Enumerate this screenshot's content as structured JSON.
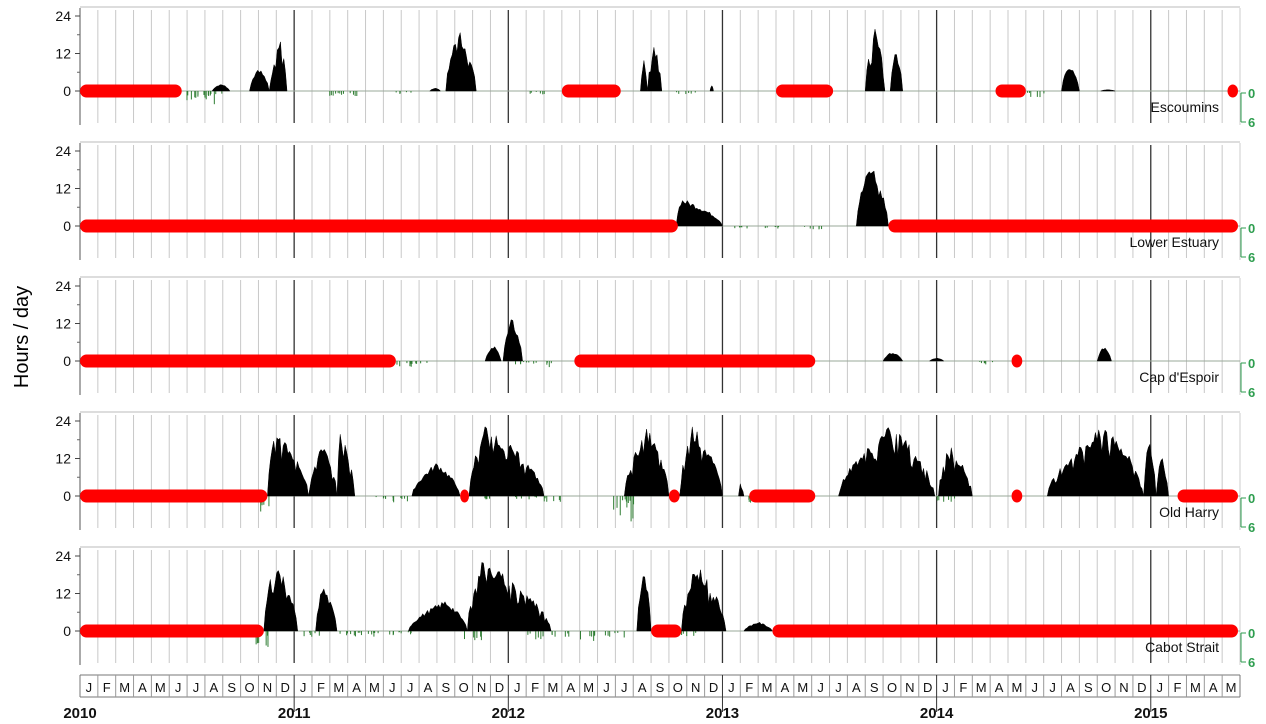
{
  "colors": {
    "presence_bars": "#000000",
    "negative_bars": "#2e7d32",
    "no_data": "#ff0000",
    "grid": "#c8c8c8",
    "year_line": "#333333",
    "right_axis": "#2e9e4f"
  },
  "chart_data": {
    "type": "bar",
    "ylabel": "Hours / day",
    "ylim": [
      -6,
      24
    ],
    "yticks": [
      "24",
      "12",
      "0"
    ],
    "right_ticks": [
      "0",
      "6"
    ],
    "month_labels": [
      "J",
      "F",
      "M",
      "A",
      "M",
      "J",
      "J",
      "A",
      "S",
      "O",
      "N",
      "D",
      "J",
      "F",
      "M",
      "A",
      "M",
      "J",
      "J",
      "A",
      "S",
      "O",
      "N",
      "D",
      "J",
      "F",
      "M",
      "A",
      "M",
      "J",
      "J",
      "A",
      "S",
      "O",
      "N",
      "D",
      "J",
      "F",
      "M",
      "A",
      "M",
      "J",
      "J",
      "A",
      "S",
      "O",
      "N",
      "D",
      "J",
      "F",
      "M",
      "A",
      "M",
      "J",
      "J",
      "A",
      "S",
      "O",
      "N",
      "D",
      "J",
      "F",
      "M",
      "A",
      "M"
    ],
    "year_labels": [
      "2010",
      "2011",
      "2012",
      "2013",
      "2014",
      "2015"
    ],
    "panels": [
      {
        "station": "Escoumins",
        "nodata_months": [
          [
            0,
            5.7
          ],
          [
            27,
            30.3
          ],
          [
            39,
            42.2
          ],
          [
            51.3,
            53
          ],
          [
            64.3,
            65.3
          ]
        ],
        "humps": [
          [
            7.4,
            7.9,
            8.4,
            2.5
          ],
          [
            9.5,
            10,
            10.6,
            8
          ],
          [
            10.6,
            11.2,
            11.6,
            17
          ],
          [
            19.6,
            19.9,
            20.2,
            1
          ],
          [
            20.5,
            21.2,
            22.2,
            20
          ],
          [
            31.4,
            31.6,
            31.8,
            10
          ],
          [
            31.8,
            32.2,
            32.6,
            17
          ],
          [
            35.3,
            35.4,
            35.5,
            2
          ],
          [
            44,
            44.6,
            45.1,
            21
          ],
          [
            45.4,
            45.7,
            46.1,
            14
          ],
          [
            55,
            55.4,
            56,
            9
          ],
          [
            57.2,
            57.6,
            58,
            0.5
          ]
        ],
        "dips": [
          [
            6.5,
            3
          ],
          [
            7,
            4
          ],
          [
            7.4,
            2
          ],
          [
            14.5,
            1.5
          ],
          [
            15.2,
            2
          ],
          [
            18,
            1
          ],
          [
            25.5,
            1
          ],
          [
            29,
            1
          ],
          [
            34,
            1
          ],
          [
            53.6,
            2
          ]
        ]
      },
      {
        "station": "Lower Estuary",
        "nodata_months": [
          [
            0,
            33.5
          ],
          [
            45.3,
            65.3
          ]
        ],
        "humps": [
          [
            33.4,
            33.7,
            36,
            9
          ],
          [
            43.5,
            44.3,
            45.3,
            21
          ]
        ],
        "dips": [
          [
            37,
            1
          ],
          [
            39,
            1
          ],
          [
            41,
            1
          ]
        ]
      },
      {
        "station": "Cap d'Espoir",
        "nodata_months": [
          [
            0,
            17.7
          ],
          [
            27.7,
            41.2
          ],
          [
            52.2,
            52.8
          ]
        ],
        "humps": [
          [
            22.7,
            23.2,
            23.6,
            5
          ],
          [
            23.7,
            24.2,
            24.8,
            14
          ],
          [
            45,
            45.5,
            46.1,
            3
          ],
          [
            47.6,
            48,
            48.4,
            1
          ],
          [
            57,
            57.4,
            57.8,
            5
          ]
        ],
        "dips": [
          [
            18,
            2
          ],
          [
            19,
            1
          ],
          [
            25,
            1
          ],
          [
            26,
            2
          ],
          [
            51,
            1
          ]
        ]
      },
      {
        "station": "Old Harry",
        "nodata_months": [
          [
            0,
            10.5
          ],
          [
            21.3,
            21.8
          ],
          [
            33,
            33.6
          ],
          [
            37.5,
            41.2
          ],
          [
            52.2,
            52.8
          ],
          [
            61.5,
            65.3
          ]
        ],
        "humps": [
          [
            10.5,
            11,
            12.8,
            22
          ],
          [
            12.8,
            13.6,
            14.4,
            18
          ],
          [
            14.4,
            14.6,
            15.4,
            21
          ],
          [
            18.6,
            20,
            21.3,
            11
          ],
          [
            21.8,
            22.7,
            26,
            23
          ],
          [
            30.5,
            31.8,
            33,
            22
          ],
          [
            33.6,
            34.3,
            36,
            23
          ],
          [
            36.9,
            37,
            37.2,
            4
          ],
          [
            42.5,
            45.5,
            47.9,
            23
          ],
          [
            48.1,
            48.7,
            50,
            17
          ],
          [
            54.2,
            57.5,
            59.6,
            23
          ],
          [
            59.6,
            59.9,
            60.3,
            20
          ],
          [
            60.3,
            60.6,
            61,
            13
          ]
        ],
        "dips": [
          [
            10.6,
            6
          ],
          [
            17,
            1
          ],
          [
            18,
            2
          ],
          [
            22.5,
            1
          ],
          [
            25,
            1
          ],
          [
            26.5,
            2
          ],
          [
            30.5,
            10
          ],
          [
            31,
            3
          ],
          [
            38,
            2
          ],
          [
            48.5,
            2
          ]
        ]
      },
      {
        "station": "Cabot Strait",
        "nodata_months": [
          [
            0,
            10.3
          ],
          [
            32,
            33.7
          ],
          [
            38.8,
            65.3
          ]
        ],
        "humps": [
          [
            10.3,
            10.9,
            12.2,
            23
          ],
          [
            13.2,
            13.6,
            14.4,
            15
          ],
          [
            18.4,
            20.5,
            21.7,
            10
          ],
          [
            21.7,
            22.5,
            26.4,
            23
          ],
          [
            31.2,
            31.6,
            32,
            21
          ],
          [
            33.7,
            34.5,
            36.2,
            22
          ],
          [
            37.2,
            38,
            38.8,
            3
          ]
        ],
        "dips": [
          [
            10.4,
            5
          ],
          [
            13,
            2
          ],
          [
            15,
            2
          ],
          [
            16,
            2
          ],
          [
            17,
            2
          ],
          [
            18,
            1
          ],
          [
            22,
            3
          ],
          [
            25.5,
            3
          ],
          [
            27,
            2
          ],
          [
            28.5,
            3
          ],
          [
            30,
            2
          ],
          [
            34,
            2
          ]
        ]
      }
    ]
  }
}
